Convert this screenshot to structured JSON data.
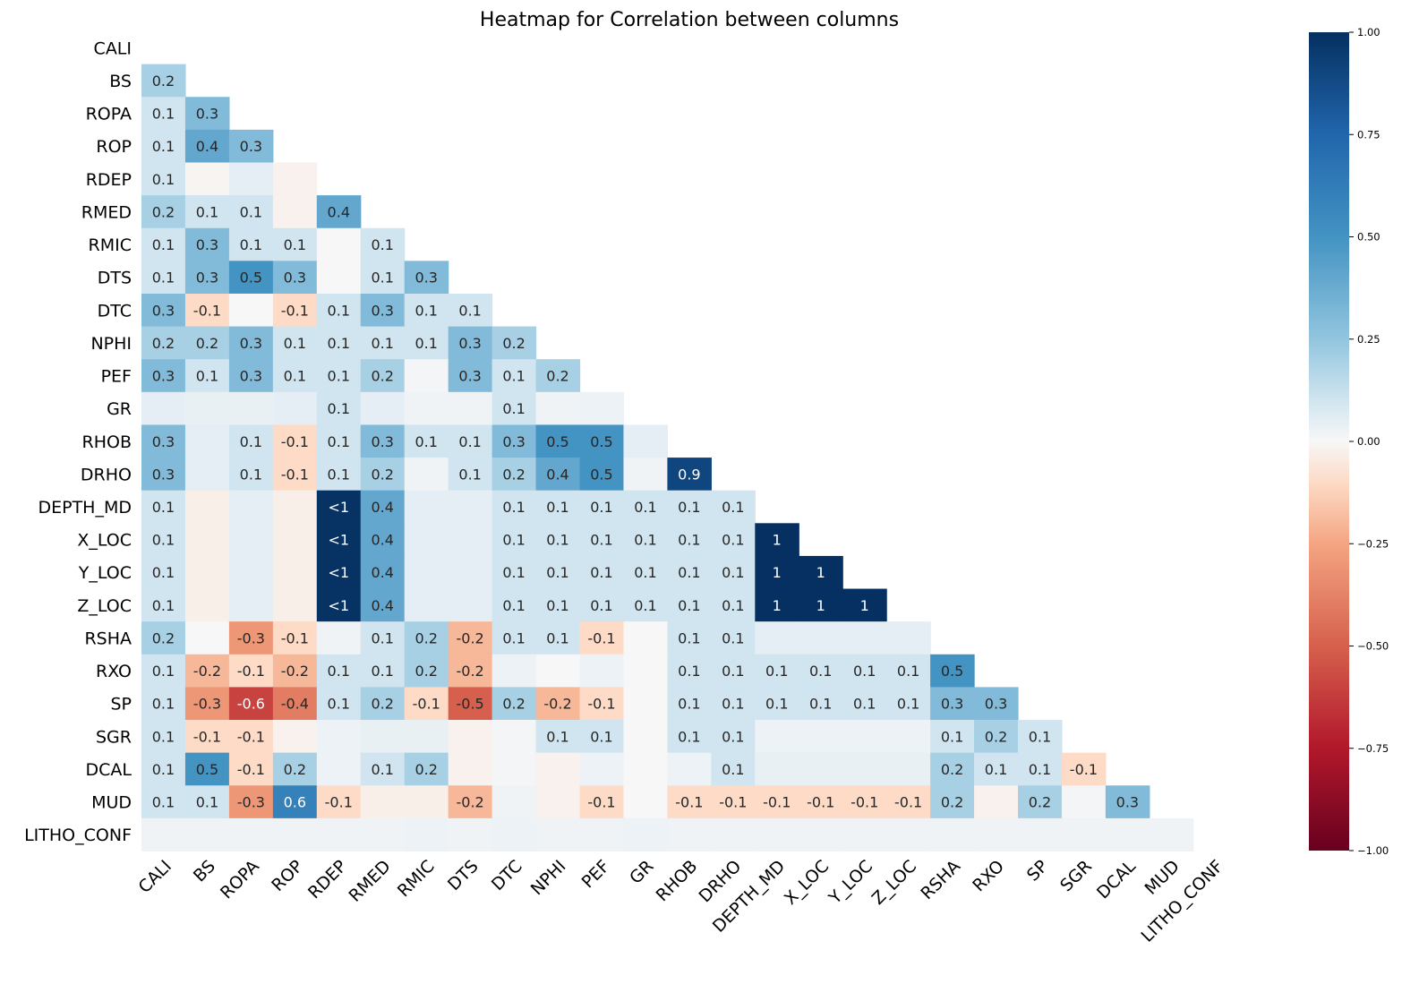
{
  "chart_data": {
    "type": "heatmap",
    "title": "Heatmap for Correlation between columns",
    "labels": [
      "CALI",
      "BS",
      "ROPA",
      "ROP",
      "RDEP",
      "RMED",
      "RMIC",
      "DTS",
      "DTC",
      "NPHI",
      "PEF",
      "GR",
      "RHOB",
      "DRHO",
      "DEPTH_MD",
      "X_LOC",
      "Y_LOC",
      "Z_LOC",
      "RSHA",
      "RXO",
      "SP",
      "SGR",
      "DCAL",
      "MUD",
      "LITHO_CONF"
    ],
    "mask": "upper-triangle including diagonal",
    "rows": [
      {
        "values": [],
        "annotations": []
      },
      {
        "values": [
          0.2
        ],
        "annotations": [
          "0.2"
        ]
      },
      {
        "values": [
          0.1,
          0.3
        ],
        "annotations": [
          "0.1",
          "0.3"
        ]
      },
      {
        "values": [
          0.1,
          0.4,
          0.3
        ],
        "annotations": [
          "0.1",
          "0.4",
          "0.3"
        ]
      },
      {
        "values": [
          0.1,
          -0.01,
          0.05,
          -0.02
        ],
        "annotations": [
          "0.1",
          "",
          "",
          ""
        ]
      },
      {
        "values": [
          0.2,
          0.1,
          0.1,
          -0.02,
          0.4
        ],
        "annotations": [
          "0.2",
          "0.1",
          "0.1",
          "",
          "0.4"
        ]
      },
      {
        "values": [
          0.1,
          0.3,
          0.1,
          0.1,
          0.0,
          0.1
        ],
        "annotations": [
          "0.1",
          "0.3",
          "0.1",
          "0.1",
          "",
          "0.1"
        ]
      },
      {
        "values": [
          0.1,
          0.3,
          0.5,
          0.3,
          0.0,
          0.1,
          0.3
        ],
        "annotations": [
          "0.1",
          "0.3",
          "0.5",
          "0.3",
          "",
          "0.1",
          "0.3"
        ]
      },
      {
        "values": [
          0.3,
          -0.1,
          0.0,
          -0.1,
          0.1,
          0.3,
          0.1,
          0.1
        ],
        "annotations": [
          "0.3",
          "-0.1",
          "",
          "-0.1",
          "0.1",
          "0.3",
          "0.1",
          "0.1"
        ]
      },
      {
        "values": [
          0.2,
          0.2,
          0.3,
          0.1,
          0.1,
          0.1,
          0.1,
          0.3,
          0.2
        ],
        "annotations": [
          "0.2",
          "0.2",
          "0.3",
          "0.1",
          "0.1",
          "0.1",
          "0.1",
          "0.3",
          "0.2"
        ]
      },
      {
        "values": [
          0.3,
          0.1,
          0.3,
          0.1,
          0.1,
          0.2,
          0.01,
          0.3,
          0.1,
          0.2
        ],
        "annotations": [
          "0.3",
          "0.1",
          "0.3",
          "0.1",
          "0.1",
          "0.2",
          "",
          "0.3",
          "0.1",
          "0.2"
        ]
      },
      {
        "values": [
          0.05,
          0.04,
          0.04,
          0.05,
          0.1,
          0.05,
          0.02,
          0.02,
          0.1,
          0.02,
          0.03
        ],
        "annotations": [
          "",
          "",
          "",
          "",
          "0.1",
          "",
          "",
          "",
          "0.1",
          "",
          ""
        ]
      },
      {
        "values": [
          0.3,
          0.05,
          0.1,
          -0.1,
          0.1,
          0.3,
          0.1,
          0.1,
          0.3,
          0.5,
          0.5,
          0.05
        ],
        "annotations": [
          "0.3",
          "",
          "0.1",
          "-0.1",
          "0.1",
          "0.3",
          "0.1",
          "0.1",
          "0.3",
          "0.5",
          "0.5",
          ""
        ]
      },
      {
        "values": [
          0.3,
          0.05,
          0.1,
          -0.1,
          0.1,
          0.2,
          0.02,
          0.1,
          0.2,
          0.4,
          0.5,
          0.02,
          0.9
        ],
        "annotations": [
          "0.3",
          "",
          "0.1",
          "-0.1",
          "0.1",
          "0.2",
          "",
          "0.1",
          "0.2",
          "0.4",
          "0.5",
          "",
          "0.9"
        ]
      },
      {
        "values": [
          0.1,
          -0.03,
          0.05,
          -0.03,
          0.99,
          0.4,
          0.05,
          0.05,
          0.1,
          0.1,
          0.1,
          0.1,
          0.1,
          0.1
        ],
        "annotations": [
          "0.1",
          "",
          "",
          "",
          "<1",
          "0.4",
          "",
          "",
          "0.1",
          "0.1",
          "0.1",
          "0.1",
          "0.1",
          "0.1"
        ]
      },
      {
        "values": [
          0.1,
          -0.03,
          0.05,
          -0.03,
          0.99,
          0.4,
          0.05,
          0.05,
          0.1,
          0.1,
          0.1,
          0.1,
          0.1,
          0.1,
          1
        ],
        "annotations": [
          "0.1",
          "",
          "",
          "",
          "<1",
          "0.4",
          "",
          "",
          "0.1",
          "0.1",
          "0.1",
          "0.1",
          "0.1",
          "0.1",
          "1"
        ]
      },
      {
        "values": [
          0.1,
          -0.03,
          0.05,
          -0.03,
          0.99,
          0.4,
          0.05,
          0.05,
          0.1,
          0.1,
          0.1,
          0.1,
          0.1,
          0.1,
          1,
          1
        ],
        "annotations": [
          "0.1",
          "",
          "",
          "",
          "<1",
          "0.4",
          "",
          "",
          "0.1",
          "0.1",
          "0.1",
          "0.1",
          "0.1",
          "0.1",
          "1",
          "1"
        ]
      },
      {
        "values": [
          0.1,
          -0.03,
          0.05,
          -0.03,
          0.99,
          0.4,
          0.05,
          0.05,
          0.1,
          0.1,
          0.1,
          0.1,
          0.1,
          0.1,
          1,
          1,
          1
        ],
        "annotations": [
          "0.1",
          "",
          "",
          "",
          "<1",
          "0.4",
          "",
          "",
          "0.1",
          "0.1",
          "0.1",
          "0.1",
          "0.1",
          "0.1",
          "1",
          "1",
          "1"
        ]
      },
      {
        "values": [
          0.2,
          0.0,
          -0.3,
          -0.1,
          0.02,
          0.1,
          0.2,
          -0.2,
          0.1,
          0.1,
          -0.1,
          0.0,
          0.1,
          0.1,
          0.05,
          0.05,
          0.05,
          0.05
        ],
        "annotations": [
          "0.2",
          "",
          "-0.3",
          "-0.1",
          "",
          "0.1",
          "0.2",
          "-0.2",
          "0.1",
          "0.1",
          "-0.1",
          "",
          "0.1",
          "0.1",
          "",
          "",
          "",
          ""
        ]
      },
      {
        "values": [
          0.1,
          -0.2,
          -0.1,
          -0.2,
          0.1,
          0.1,
          0.2,
          -0.2,
          0.03,
          0.0,
          0.03,
          0.0,
          0.1,
          0.1,
          0.1,
          0.1,
          0.1,
          0.1,
          0.5
        ],
        "annotations": [
          "0.1",
          "-0.2",
          "-0.1",
          "-0.2",
          "0.1",
          "0.1",
          "0.2",
          "-0.2",
          "",
          "",
          "",
          "",
          "0.1",
          "0.1",
          "0.1",
          "0.1",
          "0.1",
          "0.1",
          "0.5"
        ]
      },
      {
        "values": [
          0.1,
          -0.3,
          -0.6,
          -0.4,
          0.1,
          0.2,
          -0.1,
          -0.5,
          0.2,
          -0.2,
          -0.1,
          0.0,
          0.1,
          0.1,
          0.1,
          0.1,
          0.1,
          0.1,
          0.3,
          0.3
        ],
        "annotations": [
          "0.1",
          "-0.3",
          "-0.6",
          "-0.4",
          "0.1",
          "0.2",
          "-0.1",
          "-0.5",
          "0.2",
          "-0.2",
          "-0.1",
          "",
          "0.1",
          "0.1",
          "0.1",
          "0.1",
          "0.1",
          "0.1",
          "0.3",
          "0.3"
        ]
      },
      {
        "values": [
          0.1,
          -0.1,
          -0.1,
          -0.02,
          0.03,
          0.04,
          0.04,
          -0.02,
          0.01,
          0.1,
          0.1,
          0.0,
          0.1,
          0.1,
          0.03,
          0.03,
          0.03,
          0.03,
          0.1,
          0.2,
          0.1
        ],
        "annotations": [
          "0.1",
          "-0.1",
          "-0.1",
          "",
          "",
          "",
          "",
          "",
          "",
          "0.1",
          "0.1",
          "",
          "0.1",
          "0.1",
          "",
          "",
          "",
          "",
          "0.1",
          "0.2",
          "0.1"
        ]
      },
      {
        "values": [
          0.1,
          0.5,
          -0.1,
          0.2,
          0.03,
          0.1,
          0.2,
          -0.02,
          0.01,
          -0.02,
          0.03,
          0.0,
          0.03,
          0.1,
          0.04,
          0.04,
          0.04,
          0.04,
          0.2,
          0.1,
          0.1,
          -0.1
        ],
        "annotations": [
          "0.1",
          "0.5",
          "-0.1",
          "0.2",
          "",
          "0.1",
          "0.2",
          "",
          "",
          "",
          "",
          "",
          "",
          "0.1",
          "",
          "",
          "",
          "",
          "0.2",
          "0.1",
          "0.1",
          "-0.1"
        ]
      },
      {
        "values": [
          0.1,
          0.1,
          -0.3,
          0.6,
          -0.1,
          -0.03,
          -0.03,
          -0.2,
          0.02,
          -0.02,
          -0.1,
          0.0,
          -0.1,
          -0.1,
          -0.1,
          -0.1,
          -0.1,
          -0.1,
          0.2,
          -0.02,
          0.2,
          0.01,
          0.3
        ],
        "annotations": [
          "0.1",
          "0.1",
          "-0.3",
          "0.6",
          "-0.1",
          "",
          "",
          "-0.2",
          "",
          "",
          "-0.1",
          "",
          "-0.1",
          "-0.1",
          "-0.1",
          "-0.1",
          "-0.1",
          "-0.1",
          "0.2",
          "",
          "0.2",
          "",
          "0.3"
        ]
      },
      {
        "values": [
          0.02,
          0.02,
          0.02,
          0.02,
          0.02,
          0.02,
          0.03,
          0.02,
          0.03,
          0.02,
          0.02,
          0.03,
          0.02,
          0.02,
          0.02,
          0.02,
          0.02,
          0.02,
          0.02,
          0.02,
          0.02,
          0.02,
          0.02,
          0.02
        ],
        "annotations": [
          "",
          "",
          "",
          "",
          "",
          "",
          "",
          "",
          "",
          "",
          "",
          "",
          "",
          "",
          "",
          "",
          "",
          "",
          "",
          "",
          "",
          "",
          "",
          ""
        ]
      }
    ],
    "colorbar": {
      "colormap": "RdBu",
      "range": [
        -1,
        1
      ],
      "ticks": [
        "1.00",
        "0.75",
        "0.50",
        "0.25",
        "0.00",
        "−0.25",
        "−0.50",
        "−0.75",
        "−1.00"
      ]
    }
  }
}
